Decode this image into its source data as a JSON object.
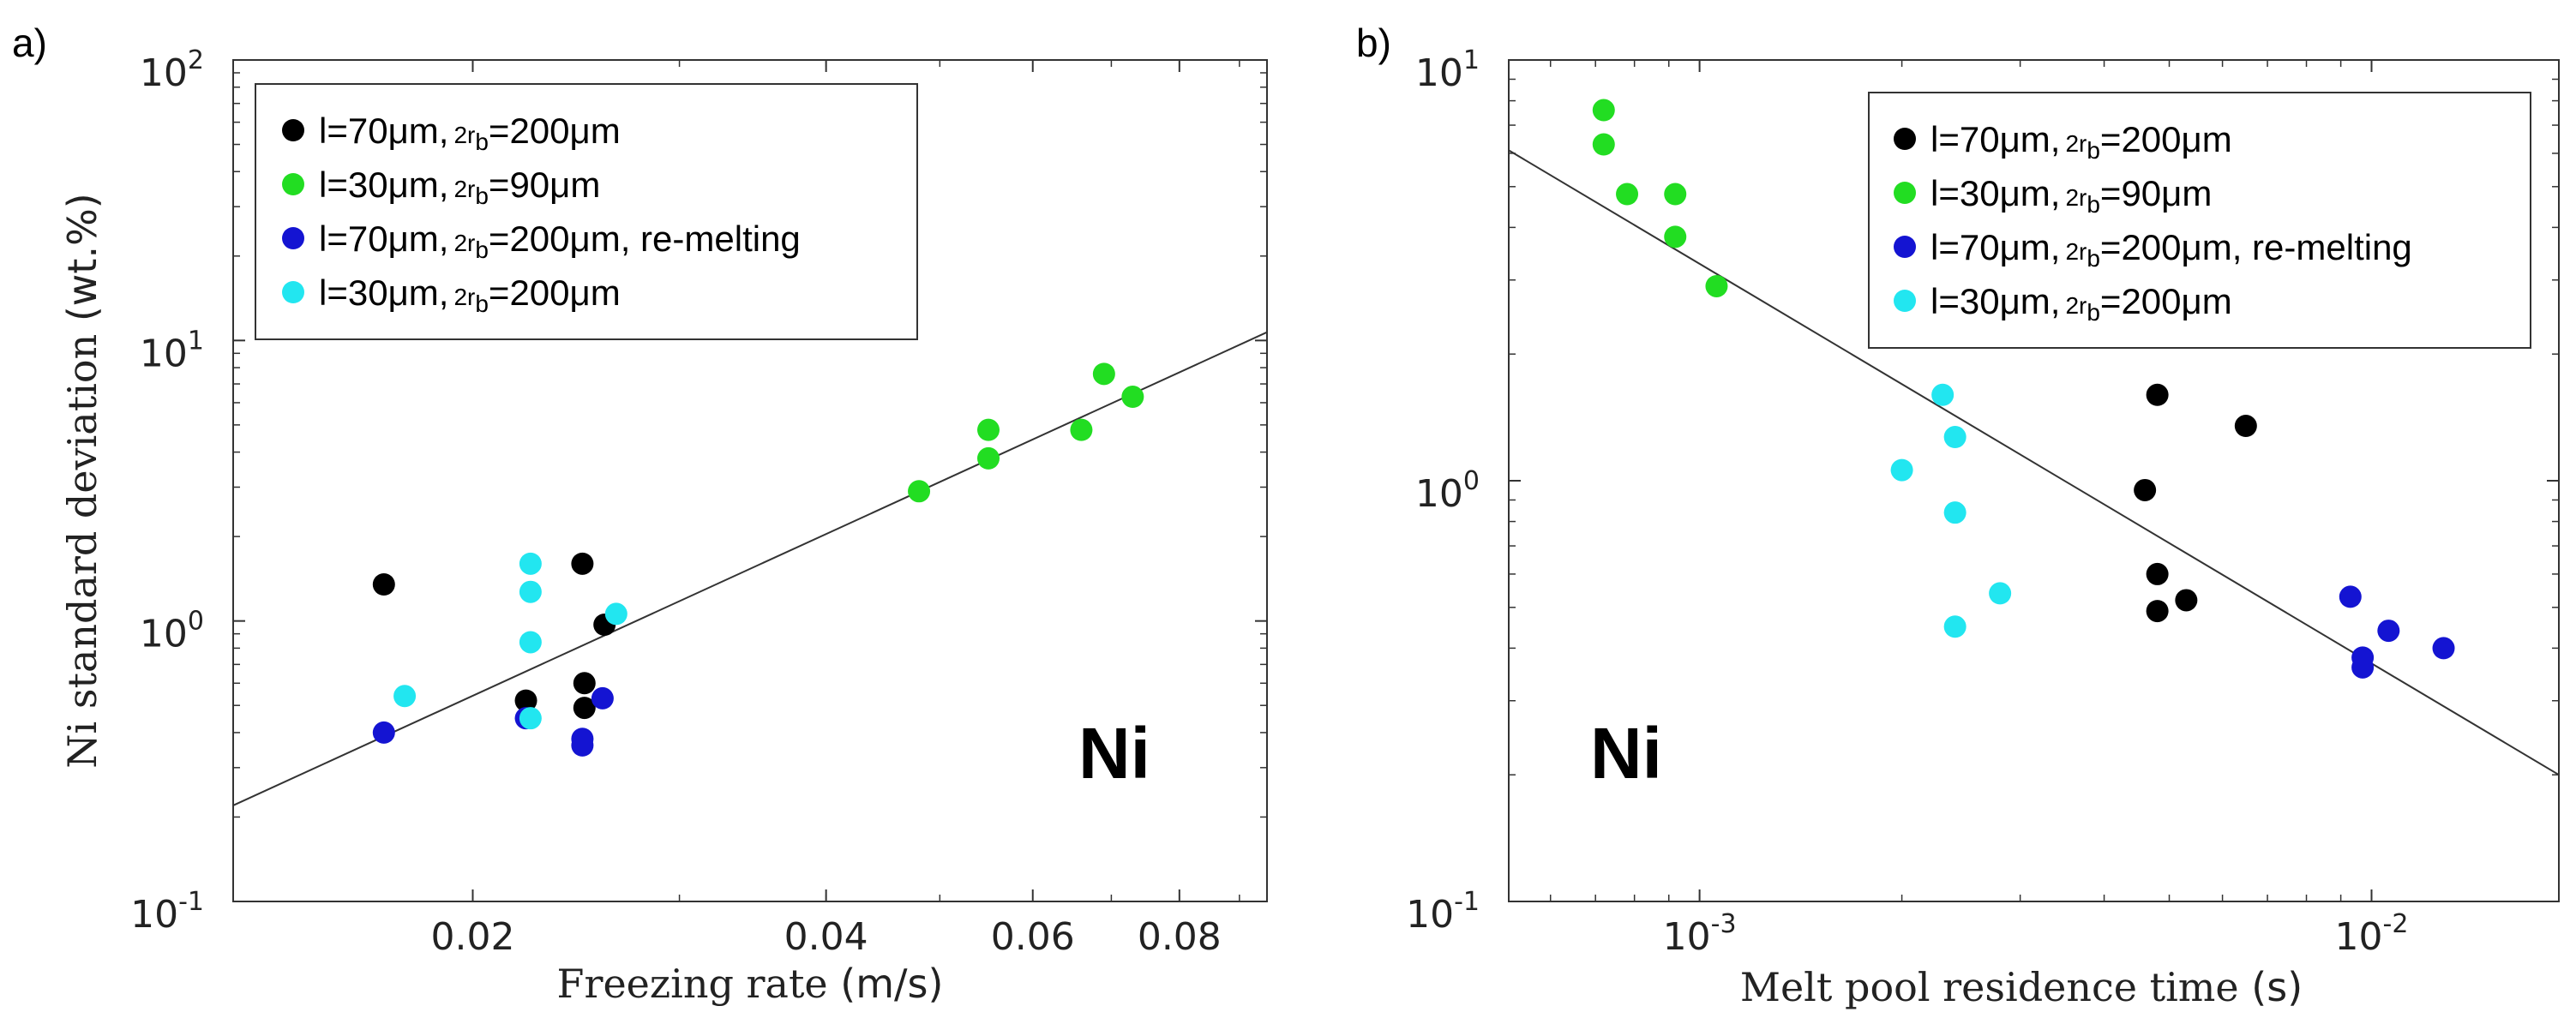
{
  "series_styles": [
    {
      "label_main": "l=70μm,",
      "label_2r": "2r",
      "label_sub": "b",
      "label_eq": "=200μm",
      "label_tail": "",
      "color": "#000000"
    },
    {
      "label_main": "l=30μm,",
      "label_2r": "2r",
      "label_sub": "b",
      "label_eq": "=90μm",
      "label_tail": "",
      "color": "#22dd22"
    },
    {
      "label_main": "l=70μm,",
      "label_2r": "2r",
      "label_sub": "b",
      "label_eq": "=200μm,",
      "label_tail": " re-melting",
      "color": "#1414d2"
    },
    {
      "label_main": "l=30μm,",
      "label_2r": "2r",
      "label_sub": "b",
      "label_eq": "=200μm",
      "label_tail": "",
      "color": "#22e6f0"
    }
  ],
  "chart_data": [
    {
      "id": "a",
      "panel_label": "a)",
      "type": "scatter",
      "xscale": "log",
      "yscale": "log",
      "xlabel": "Freezing rate",
      "xlabel_unit": "(m/s)",
      "ylabel": "Ni standard deviation",
      "ylabel_unit": "(wt.%)",
      "xlim": [
        0.0125,
        0.095
      ],
      "ylim": [
        0.1,
        100
      ],
      "xticks": [
        {
          "value": 0.02,
          "label": "0.02"
        },
        {
          "value": 0.04,
          "label": "0.04"
        },
        {
          "value": 0.06,
          "label": "0.06"
        },
        {
          "value": 0.08,
          "label": "0.08"
        }
      ],
      "yticks": [
        {
          "value": 0.1,
          "base": "10",
          "exp": "-1"
        },
        {
          "value": 1,
          "base": "10",
          "exp": "0"
        },
        {
          "value": 10,
          "base": "10",
          "exp": "1"
        },
        {
          "value": 100,
          "base": "10",
          "exp": "2"
        }
      ],
      "fit_line": {
        "x": [
          0.0125,
          0.095
        ],
        "y": [
          0.22,
          10.7
        ]
      },
      "annotation": "Ni",
      "legend_position": "top-left",
      "series": [
        {
          "name": "l=70μm, 2rb=200μm",
          "points": [
            [
              0.0168,
              1.35
            ],
            [
              0.0222,
              0.52
            ],
            [
              0.0248,
              1.6
            ],
            [
              0.0249,
              0.6
            ],
            [
              0.0249,
              0.49
            ],
            [
              0.0259,
              0.97
            ]
          ]
        },
        {
          "name": "l=30μm, 2rb=90μm",
          "points": [
            [
              0.048,
              2.9
            ],
            [
              0.055,
              3.8
            ],
            [
              0.055,
              4.8
            ],
            [
              0.066,
              4.8
            ],
            [
              0.069,
              7.6
            ],
            [
              0.073,
              6.3
            ]
          ]
        },
        {
          "name": "l=70μm, 2rb=200μm, re-melting",
          "points": [
            [
              0.0168,
              0.4
            ],
            [
              0.0222,
              0.45
            ],
            [
              0.0248,
              0.38
            ],
            [
              0.0248,
              0.36
            ],
            [
              0.0258,
              0.53
            ]
          ]
        },
        {
          "name": "l=30μm, 2rb=200μm",
          "points": [
            [
              0.0175,
              0.54
            ],
            [
              0.0224,
              1.6
            ],
            [
              0.0224,
              1.27
            ],
            [
              0.0224,
              0.84
            ],
            [
              0.0224,
              0.45
            ],
            [
              0.0265,
              1.06
            ]
          ]
        }
      ]
    },
    {
      "id": "b",
      "panel_label": "b)",
      "type": "scatter",
      "xscale": "log",
      "yscale": "log",
      "xlabel": "Melt pool residence time",
      "xlabel_unit": "(s)",
      "ylabel": "",
      "ylabel_unit": "",
      "xlim": [
        0.00052,
        0.019
      ],
      "ylim": [
        0.1,
        10
      ],
      "xticks": [
        {
          "value": 0.001,
          "base": "10",
          "exp": "-3"
        },
        {
          "value": 0.01,
          "base": "10",
          "exp": "-2"
        }
      ],
      "yticks": [
        {
          "value": 0.1,
          "base": "10",
          "exp": "-1"
        },
        {
          "value": 1,
          "base": "10",
          "exp": "0"
        },
        {
          "value": 10,
          "base": "10",
          "exp": "1"
        }
      ],
      "fit_line": {
        "x": [
          0.00052,
          0.019
        ],
        "y": [
          6.1,
          0.2
        ]
      },
      "annotation": "Ni",
      "legend_position": "top-right",
      "series": [
        {
          "name": "l=70μm, 2rb=200μm",
          "points": [
            [
              0.0046,
              0.95
            ],
            [
              0.0048,
              1.6
            ],
            [
              0.0048,
              0.6
            ],
            [
              0.0048,
              0.49
            ],
            [
              0.0053,
              0.52
            ],
            [
              0.0065,
              1.35
            ]
          ]
        },
        {
          "name": "l=30μm, 2rb=90μm",
          "points": [
            [
              0.00072,
              7.6
            ],
            [
              0.00072,
              6.3
            ],
            [
              0.00078,
              4.8
            ],
            [
              0.00092,
              4.8
            ],
            [
              0.00092,
              3.8
            ],
            [
              0.00106,
              2.9
            ]
          ]
        },
        {
          "name": "l=70μm, 2rb=200μm, re-melting",
          "points": [
            [
              0.0093,
              0.53
            ],
            [
              0.0097,
              0.38
            ],
            [
              0.0097,
              0.36
            ],
            [
              0.0106,
              0.44
            ],
            [
              0.0128,
              0.4
            ]
          ]
        },
        {
          "name": "l=30μm, 2rb=200μm",
          "points": [
            [
              0.002,
              1.06
            ],
            [
              0.0023,
              1.6
            ],
            [
              0.0024,
              1.27
            ],
            [
              0.0024,
              0.84
            ],
            [
              0.0024,
              0.45
            ],
            [
              0.0028,
              0.54
            ]
          ]
        }
      ]
    }
  ]
}
